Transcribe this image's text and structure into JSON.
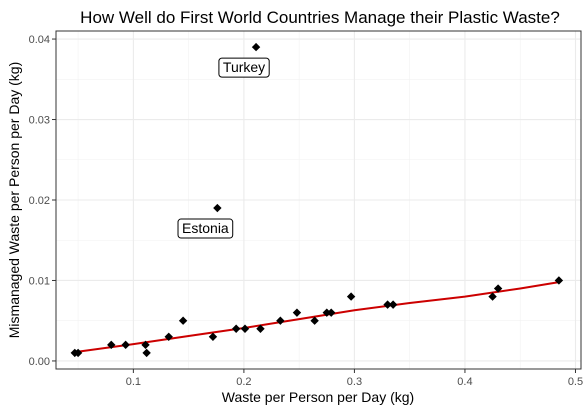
{
  "chart_data": {
    "type": "scatter",
    "title": "How Well do First World Countries Manage their Plastic Waste?",
    "xlabel": "Waste per Person per Day (kg)",
    "ylabel": "Mismanaged Waste per Person per Day (kg)",
    "xlim": [
      0.03,
      0.505
    ],
    "ylim": [
      -0.001,
      0.041
    ],
    "x_ticks": [
      0.1,
      0.2,
      0.3,
      0.4,
      0.5
    ],
    "x_tick_labels": [
      "0.1",
      "0.2",
      "0.3",
      "0.4",
      "0.5"
    ],
    "y_ticks": [
      0.0,
      0.01,
      0.02,
      0.03,
      0.04
    ],
    "y_tick_labels": [
      "0.00",
      "0.01",
      "0.02",
      "0.03",
      "0.04"
    ],
    "grid": true,
    "legend": "none",
    "point_color": "#000000",
    "points": [
      {
        "x": 0.047,
        "y": 0.001
      },
      {
        "x": 0.05,
        "y": 0.001
      },
      {
        "x": 0.08,
        "y": 0.002
      },
      {
        "x": 0.093,
        "y": 0.002
      },
      {
        "x": 0.111,
        "y": 0.002
      },
      {
        "x": 0.112,
        "y": 0.001
      },
      {
        "x": 0.132,
        "y": 0.003
      },
      {
        "x": 0.145,
        "y": 0.005
      },
      {
        "x": 0.172,
        "y": 0.003
      },
      {
        "x": 0.176,
        "y": 0.019
      },
      {
        "x": 0.193,
        "y": 0.004
      },
      {
        "x": 0.201,
        "y": 0.004
      },
      {
        "x": 0.211,
        "y": 0.039
      },
      {
        "x": 0.215,
        "y": 0.004
      },
      {
        "x": 0.233,
        "y": 0.005
      },
      {
        "x": 0.248,
        "y": 0.006
      },
      {
        "x": 0.264,
        "y": 0.005
      },
      {
        "x": 0.275,
        "y": 0.006
      },
      {
        "x": 0.279,
        "y": 0.006
      },
      {
        "x": 0.297,
        "y": 0.008
      },
      {
        "x": 0.33,
        "y": 0.007
      },
      {
        "x": 0.335,
        "y": 0.007
      },
      {
        "x": 0.425,
        "y": 0.008
      },
      {
        "x": 0.43,
        "y": 0.009
      },
      {
        "x": 0.485,
        "y": 0.01
      }
    ],
    "trend_line": {
      "color": "#cc0000",
      "x": [
        0.047,
        0.1,
        0.15,
        0.2,
        0.25,
        0.3,
        0.35,
        0.4,
        0.45,
        0.485
      ],
      "y": [
        0.0011,
        0.0021,
        0.0031,
        0.0041,
        0.0052,
        0.0063,
        0.0072,
        0.008,
        0.009,
        0.0098
      ]
    },
    "annotations": [
      {
        "text": "Turkey",
        "x": 0.211,
        "y": 0.039
      },
      {
        "text": "Estonia",
        "x": 0.176,
        "y": 0.019
      }
    ]
  }
}
